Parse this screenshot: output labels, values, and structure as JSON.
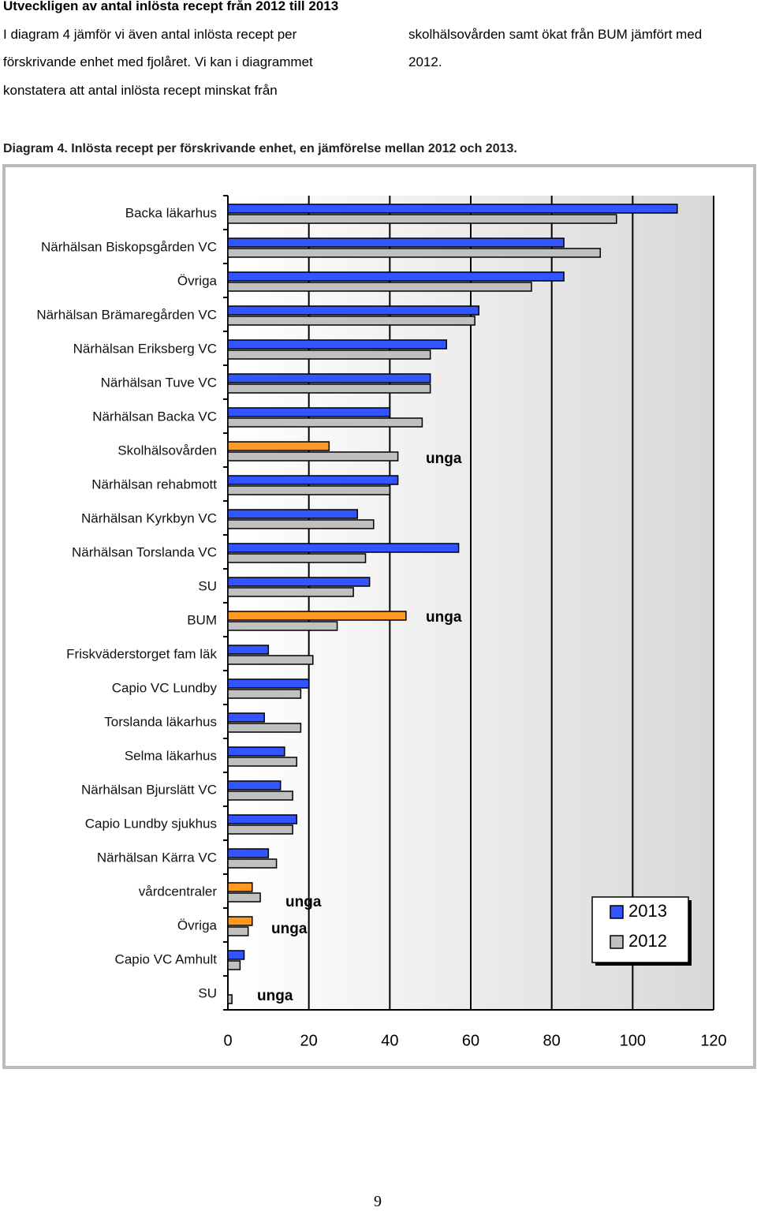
{
  "heading": "Utveckligen av antal inlösta recept från 2012 till 2013",
  "paragraph_left": [
    "I diagram 4 jämför vi även antal inlösta recept per",
    "förskrivande enhet med fjolåret. Vi kan i diagrammet",
    "konstatera att antal inlösta recept minskat från"
  ],
  "paragraph_right": [
    "skolhälsovården samt ökat från BUM jämfört med",
    "2012."
  ],
  "caption": "Diagram 4. Inlösta recept per förskrivande enhet, en jämförelse mellan 2012 och 2013.",
  "chart_data": {
    "type": "bar",
    "orientation": "horizontal",
    "categories": [
      "Backa läkarhus",
      "Närhälsan Biskopsgården VC",
      "Övriga",
      "Närhälsan Brämaregården VC",
      "Närhälsan Eriksberg VC",
      "Närhälsan Tuve VC",
      "Närhälsan Backa VC",
      "Skolhälsovården",
      "Närhälsan rehabmott",
      "Närhälsan Kyrkbyn VC",
      "Närhälsan Torslanda VC",
      "SU",
      "BUM",
      "Friskväderstorget fam läk",
      "Capio VC Lundby",
      "Torslanda läkarhus",
      "Selma läkarhus",
      "Närhälsan Bjurslätt VC",
      "Capio Lundby sjukhus",
      "Närhälsan Kärra VC",
      "vårdcentraler",
      "Övriga",
      "Capio VC Amhult",
      "SU"
    ],
    "series": [
      {
        "name": "2013",
        "color": "#3355ff",
        "colors": [
          "#3355ff",
          "#3355ff",
          "#3355ff",
          "#3355ff",
          "#3355ff",
          "#3355ff",
          "#3355ff",
          "#ff9922",
          "#3355ff",
          "#3355ff",
          "#3355ff",
          "#3355ff",
          "#ff9922",
          "#3355ff",
          "#3355ff",
          "#3355ff",
          "#3355ff",
          "#3355ff",
          "#3355ff",
          "#3355ff",
          "#ff9922",
          "#ff9922",
          "#3355ff",
          "#3355ff"
        ],
        "values": [
          111,
          83,
          83,
          62,
          54,
          50,
          40,
          25,
          42,
          32,
          57,
          35,
          44,
          10,
          20,
          9,
          14,
          13,
          17,
          10,
          6,
          6,
          4,
          null
        ]
      },
      {
        "name": "2012",
        "color": "#c0c0c0",
        "values": [
          96,
          92,
          75,
          61,
          50,
          50,
          48,
          42,
          40,
          36,
          34,
          31,
          27,
          21,
          18,
          18,
          17,
          16,
          16,
          12,
          8,
          5,
          3,
          1
        ]
      }
    ],
    "annotations": [
      "unga",
      "unga",
      "unga",
      "unga",
      "unga"
    ],
    "xlim": [
      0,
      120
    ],
    "xticks": [
      0,
      20,
      40,
      60,
      80,
      100,
      120
    ],
    "grid": true,
    "legend": "lower-right"
  },
  "page_number": "9"
}
